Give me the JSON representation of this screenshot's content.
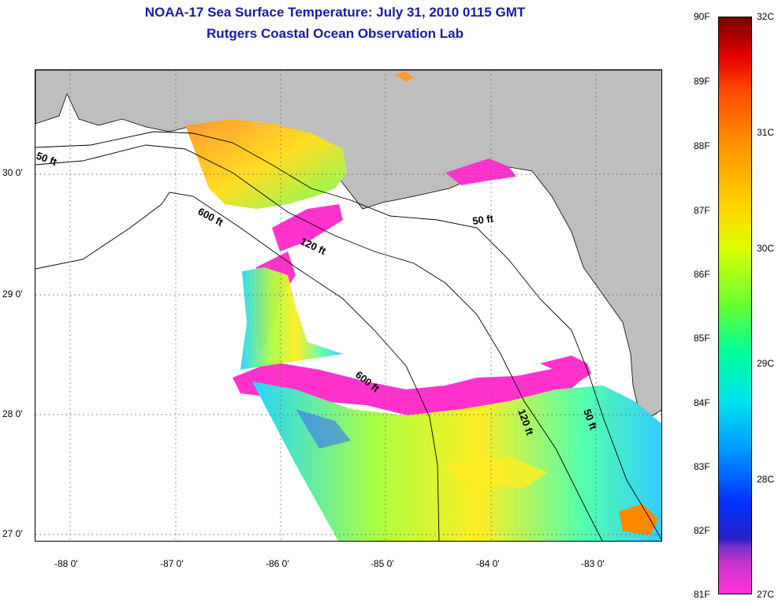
{
  "header": {
    "title": "NOAA-17 Sea Surface Temperature:  July 31, 2010 0115 GMT",
    "subtitle": "Rutgers Coastal Ocean Observation Lab"
  },
  "map": {
    "lat_labels": [
      "30 0'",
      "29 0'",
      "28 0'",
      "27 0'"
    ],
    "lon_labels": [
      "-88 0'",
      "-87 0'",
      "-86 0'",
      "-85 0'",
      "-84 0'",
      "-83 0'"
    ],
    "contour_labels": [
      "50 ft",
      "600 ft",
      "120 ft",
      "50 ft",
      "600 ft",
      "120 ft",
      "50 ft"
    ]
  },
  "colorbar": {
    "fahrenheit": [
      "90F",
      "89F",
      "88F",
      "87F",
      "86F",
      "85F",
      "84F",
      "83F",
      "82F",
      "81F"
    ],
    "celsius": [
      "32C",
      "31C",
      "30C",
      "29C",
      "28C",
      "27C"
    ]
  },
  "colors": {
    "title": "#1a1aa6",
    "land": "#bebebe",
    "cloud_magenta": "#ff33cc"
  }
}
